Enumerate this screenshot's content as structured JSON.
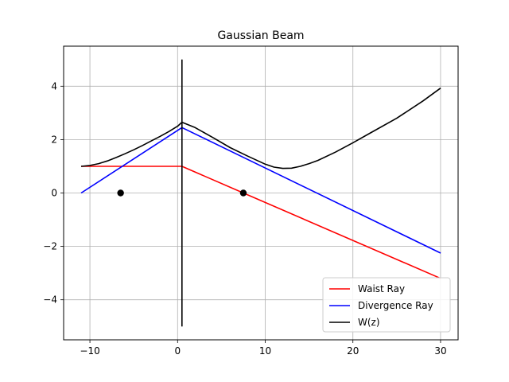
{
  "chart_data": {
    "type": "line",
    "title": "Gaussian Beam",
    "xlabel": "",
    "ylabel": "",
    "xlim": [
      -13.0,
      32.0
    ],
    "ylim": [
      -5.5,
      5.5
    ],
    "x_ticks": [
      -10,
      0,
      10,
      20,
      30
    ],
    "y_ticks": [
      -4,
      -2,
      0,
      2,
      4
    ],
    "x_tick_labels": [
      "−10",
      "0",
      "10",
      "20",
      "30"
    ],
    "y_tick_labels": [
      "−4",
      "−2",
      "0",
      "2",
      "4"
    ],
    "grid": true,
    "legend_position": "lower-right",
    "series": [
      {
        "name": "Waist Ray",
        "color": "#ff0000",
        "points": [
          [
            -11,
            1.0
          ],
          [
            0.5,
            1.0
          ],
          [
            7.5,
            0.0
          ],
          [
            30,
            -3.2
          ]
        ]
      },
      {
        "name": "Divergence Ray",
        "color": "#0000ff",
        "points": [
          [
            -11,
            0.0
          ],
          [
            0.5,
            2.45
          ],
          [
            30,
            -2.25
          ]
        ]
      },
      {
        "name": "W(z)",
        "color": "#000000",
        "points": [
          [
            -11,
            1.0
          ],
          [
            -10,
            1.03
          ],
          [
            -9,
            1.1
          ],
          [
            -8,
            1.2
          ],
          [
            -7,
            1.33
          ],
          [
            -6,
            1.47
          ],
          [
            -5,
            1.62
          ],
          [
            -4,
            1.78
          ],
          [
            -3,
            1.95
          ],
          [
            -2,
            2.12
          ],
          [
            -1,
            2.3
          ],
          [
            0,
            2.5
          ],
          [
            0.5,
            2.65
          ],
          [
            2,
            2.45
          ],
          [
            4,
            2.08
          ],
          [
            6,
            1.7
          ],
          [
            8,
            1.38
          ],
          [
            10,
            1.08
          ],
          [
            11,
            0.97
          ],
          [
            12,
            0.92
          ],
          [
            13,
            0.93
          ],
          [
            14,
            1.0
          ],
          [
            15,
            1.1
          ],
          [
            16,
            1.22
          ],
          [
            18,
            1.53
          ],
          [
            20,
            1.88
          ],
          [
            22,
            2.25
          ],
          [
            25,
            2.8
          ],
          [
            28,
            3.45
          ],
          [
            30,
            3.93
          ]
        ]
      }
    ],
    "vertical_line": {
      "x": 0.5,
      "y_range": [
        -5.0,
        5.0
      ],
      "color": "#000000"
    },
    "markers": [
      {
        "x": -6.5,
        "y": 0.0,
        "color": "#000000"
      },
      {
        "x": 7.5,
        "y": 0.0,
        "color": "#000000"
      }
    ]
  }
}
